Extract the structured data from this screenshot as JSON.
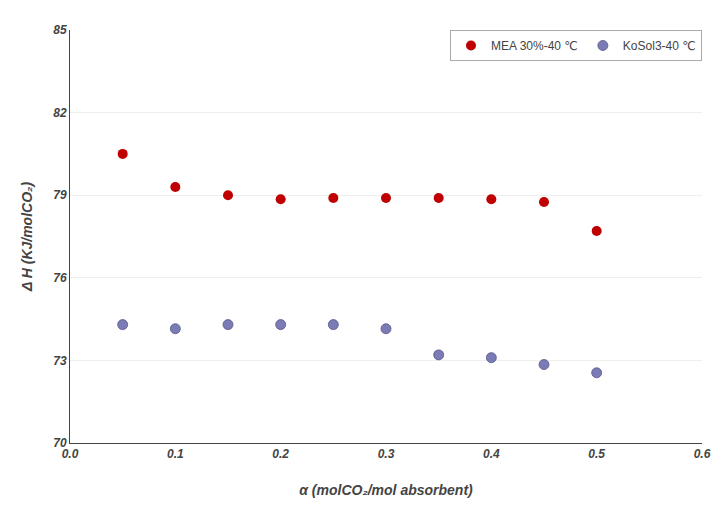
{
  "chart_data": {
    "type": "scatter",
    "xlabel": "α (molCO₂/mol absorbent)",
    "ylabel": "Δ H (KJ/molCO₂)",
    "series": [
      {
        "name": "MEA 30%-40 ℃",
        "color": "#C00000",
        "marker": "circle",
        "x": [
          0.05,
          0.1,
          0.15,
          0.2,
          0.25,
          0.3,
          0.35,
          0.4,
          0.45,
          0.5
        ],
        "values": [
          80.5,
          79.3,
          79.0,
          78.85,
          78.9,
          78.9,
          78.9,
          78.85,
          78.75,
          77.7
        ]
      },
      {
        "name": "KoSol3-40 ℃",
        "color": "#7B7BB5",
        "marker": "circle",
        "x": [
          0.05,
          0.1,
          0.15,
          0.2,
          0.25,
          0.3,
          0.35,
          0.4,
          0.45,
          0.5
        ],
        "values": [
          74.3,
          74.15,
          74.3,
          74.3,
          74.3,
          74.15,
          73.2,
          73.1,
          72.85,
          72.55
        ]
      }
    ],
    "xlim": [
      0.0,
      0.6
    ],
    "ylim": [
      70,
      85
    ],
    "xticks": [
      {
        "value": 0.0,
        "label": "0.0"
      },
      0.1,
      0.2,
      0.3,
      0.4,
      0.5,
      0.6
    ],
    "yticks": [
      70,
      73,
      76,
      79,
      82,
      85
    ],
    "grid": "y",
    "legend": "upper right"
  }
}
